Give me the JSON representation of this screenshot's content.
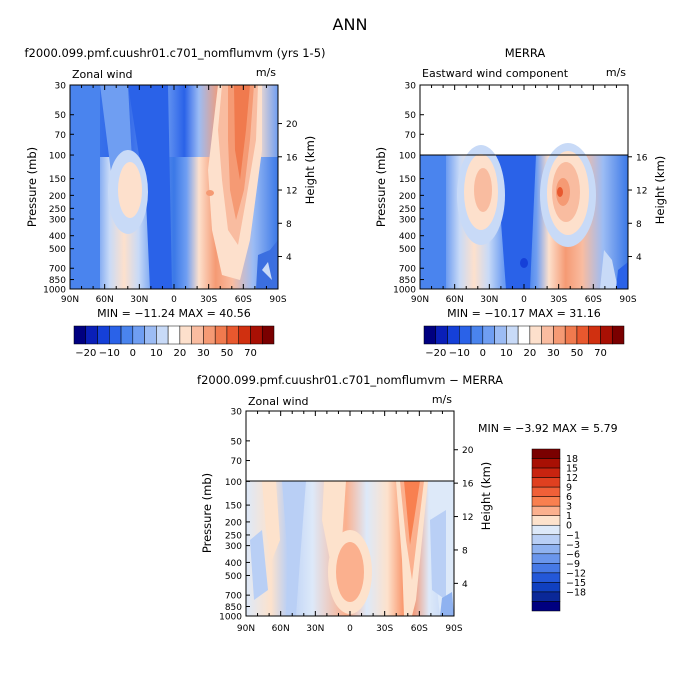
{
  "figure": {
    "title": "ANN"
  },
  "chart_data": [
    {
      "type": "heatmap",
      "panel_title": "f2000.099.pmf.cuushr01.c701_nomflumvm (yrs 1-5)",
      "variable": "Zonal wind",
      "units": "m/s",
      "ylabel": "Pressure (mb)",
      "y2label": "Height (km)",
      "x_ticks": [
        "90N",
        "60N",
        "30N",
        "0",
        "30S",
        "60S",
        "90S"
      ],
      "y_ticks": [
        "30",
        "50",
        "70",
        "100",
        "150",
        "200",
        "250",
        "300",
        "400",
        "500",
        "700",
        "850",
        "1000"
      ],
      "y2_ticks": [
        "4",
        "8",
        "12",
        "16",
        "20"
      ],
      "ylim": [
        1000,
        30
      ],
      "stats": "MIN = −11.24   MAX =  40.56",
      "colorbar_labels": [
        "−20",
        "−10",
        "0",
        "10",
        "20",
        "30",
        "50",
        "70"
      ]
    },
    {
      "type": "heatmap",
      "panel_title": "MERRA",
      "variable": "Eastward wind component",
      "units": "m/s",
      "ylabel": "Pressure (mb)",
      "y2label": "Height (km)",
      "x_ticks": [
        "90N",
        "60N",
        "30N",
        "0",
        "30S",
        "60S",
        "90S"
      ],
      "y_ticks": [
        "30",
        "50",
        "70",
        "100",
        "150",
        "200",
        "250",
        "300",
        "400",
        "500",
        "700",
        "850",
        "1000"
      ],
      "y2_ticks": [
        "4",
        "8",
        "12",
        "16"
      ],
      "ylim": [
        1000,
        30
      ],
      "stats": "MIN = −10.17   MAX =  31.16",
      "colorbar_labels": [
        "−20",
        "−10",
        "0",
        "10",
        "20",
        "30",
        "50",
        "70"
      ]
    },
    {
      "type": "heatmap",
      "panel_title": "f2000.099.pmf.cuushr01.c701_nomflumvm − MERRA",
      "variable": "Zonal wind",
      "units": "m/s",
      "ylabel": "Pressure (mb)",
      "y2label": "Height (km)",
      "x_ticks": [
        "90N",
        "60N",
        "30N",
        "0",
        "30S",
        "60S",
        "90S"
      ],
      "y_ticks": [
        "30",
        "50",
        "70",
        "100",
        "150",
        "200",
        "250",
        "300",
        "400",
        "500",
        "700",
        "850",
        "1000"
      ],
      "y2_ticks": [
        "4",
        "8",
        "12",
        "16",
        "20"
      ],
      "ylim": [
        1000,
        30
      ],
      "stats": "MIN =   −3.92   MAX =    5.79",
      "colorbar_labels": [
        "18",
        "15",
        "12",
        "9",
        "6",
        "3",
        "1",
        "0",
        "−1",
        "−3",
        "−6",
        "−9",
        "−12",
        "−15",
        "−18"
      ]
    }
  ],
  "colors": {
    "main_scale": [
      "#000080",
      "#0a1fb8",
      "#1540d8",
      "#2a62e8",
      "#4a84ee",
      "#6f9ef2",
      "#9cbcf4",
      "#c8daf7",
      "#ffffff",
      "#fde0cc",
      "#f9bca0",
      "#f59a74",
      "#f07a4e",
      "#e8582e",
      "#d03010",
      "#a81004",
      "#7a0000"
    ],
    "diff_scale": [
      "#7a0000",
      "#a81004",
      "#c82410",
      "#e04020",
      "#f06038",
      "#f88050",
      "#fbb08e",
      "#fde2cc",
      "#dde9f9",
      "#b9cff5",
      "#8fb2f0",
      "#6a96ec",
      "#4679e6",
      "#2458d8",
      "#1040c0",
      "#0a2898",
      "#000080"
    ]
  }
}
